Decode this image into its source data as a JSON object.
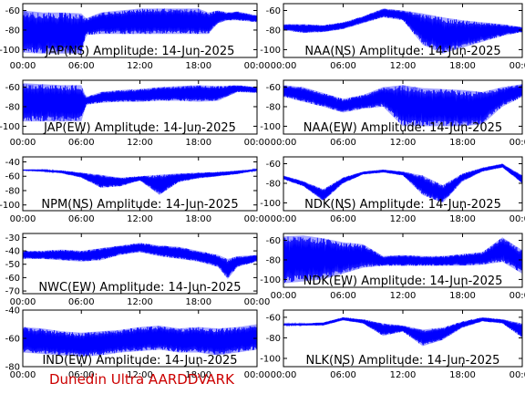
{
  "footer": {
    "text": "Dunedin Ultra AARDDVARK",
    "color": "#cc0000"
  },
  "trace_color": "#0000ff",
  "chart_data": [
    {
      "type": "line",
      "title": "JAP(NS) Amplitude: 14-Jun-2025",
      "x_ticks": [
        "00:00",
        "06:00",
        "12:00",
        "18:00",
        "00:00"
      ],
      "y_ticks": [
        -60,
        -80,
        -100
      ],
      "ylim": [
        -108,
        -53
      ],
      "xlim": [
        0,
        24
      ],
      "x_hours": [
        0,
        2,
        4,
        6,
        6.5,
        8,
        10,
        12,
        14,
        16,
        18,
        19,
        20,
        21,
        22,
        24
      ],
      "upper": [
        -60,
        -62,
        -62,
        -63,
        -68,
        -62,
        -60,
        -58,
        -58,
        -58,
        -58,
        -62,
        -60,
        -62,
        -61,
        -65
      ],
      "lower": [
        -103,
        -104,
        -104,
        -104,
        -85,
        -84,
        -84,
        -84,
        -84,
        -84,
        -84,
        -84,
        -73,
        -70,
        -70,
        -72
      ]
    },
    {
      "type": "line",
      "title": "NAA(NS) Amplitude: 14-Jun-2025",
      "x_ticks": [
        "00:00",
        "06:00",
        "12:00",
        "18:00",
        "00:00"
      ],
      "y_ticks": [
        -60,
        -80,
        -100
      ],
      "ylim": [
        -108,
        -53
      ],
      "xlim": [
        0,
        24
      ],
      "x_hours": [
        0,
        2,
        4,
        6,
        8,
        10,
        12,
        14,
        16,
        18,
        20,
        22,
        24
      ],
      "upper": [
        -74,
        -74,
        -75,
        -72,
        -66,
        -58,
        -60,
        -63,
        -67,
        -70,
        -72,
        -74,
        -77
      ],
      "lower": [
        -80,
        -83,
        -82,
        -79,
        -73,
        -67,
        -70,
        -95,
        -104,
        -98,
        -92,
        -86,
        -82
      ]
    },
    {
      "type": "line",
      "title": "JAP(EW) Amplitude: 14-Jun-2025",
      "x_ticks": [
        "00:00",
        "06:00",
        "12:00",
        "18:00",
        "00:00"
      ],
      "y_ticks": [
        -60,
        -80,
        -100
      ],
      "ylim": [
        -108,
        -53
      ],
      "xlim": [
        0,
        24
      ],
      "x_hours": [
        0,
        2,
        4,
        6,
        6.5,
        8,
        10,
        12,
        14,
        16,
        18,
        20,
        22,
        24
      ],
      "upper": [
        -56,
        -57,
        -58,
        -58,
        -70,
        -65,
        -63,
        -62,
        -60,
        -59,
        -58,
        -59,
        -58,
        -60
      ],
      "lower": [
        -95,
        -95,
        -95,
        -95,
        -78,
        -76,
        -75,
        -75,
        -74,
        -74,
        -75,
        -74,
        -65,
        -66
      ]
    },
    {
      "type": "line",
      "title": "NAA(EW) Amplitude: 14-Jun-2025",
      "x_ticks": [
        "00:00",
        "06:00",
        "12:00",
        "18:00",
        "00:00"
      ],
      "y_ticks": [
        -60,
        -80,
        -100
      ],
      "ylim": [
        -108,
        -53
      ],
      "xlim": [
        0,
        24
      ],
      "x_hours": [
        0,
        2,
        4,
        6,
        8,
        10,
        12,
        14,
        16,
        18,
        20,
        22,
        24
      ],
      "upper": [
        -58,
        -60,
        -66,
        -72,
        -68,
        -60,
        -58,
        -61,
        -62,
        -63,
        -65,
        -60,
        -57
      ],
      "lower": [
        -70,
        -75,
        -80,
        -86,
        -82,
        -80,
        -100,
        -100,
        -100,
        -100,
        -98,
        -80,
        -70
      ]
    },
    {
      "type": "line",
      "title": "NPM(NS) Amplitude: 14-Jun-2025",
      "x_ticks": [
        "00:00",
        "06:00",
        "12:00",
        "18:00",
        "00:00"
      ],
      "y_ticks": [
        -40,
        -60,
        -80,
        -100
      ],
      "ylim": [
        -108,
        -33
      ],
      "xlim": [
        0,
        24
      ],
      "x_hours": [
        0,
        2,
        4,
        6,
        8,
        10,
        12,
        14,
        16,
        18,
        20,
        22,
        24
      ],
      "upper": [
        -51,
        -51,
        -52,
        -55,
        -58,
        -62,
        -60,
        -58,
        -56,
        -55,
        -54,
        -52,
        -50
      ],
      "lower": [
        -52,
        -53,
        -56,
        -62,
        -76,
        -74,
        -66,
        -86,
        -68,
        -63,
        -60,
        -57,
        -52
      ]
    },
    {
      "type": "line",
      "title": "NDK(NS) Amplitude: 14-Jun-2025",
      "x_ticks": [
        "00:00",
        "06:00",
        "12:00",
        "18:00",
        "00:00"
      ],
      "y_ticks": [
        -60,
        -80,
        -100
      ],
      "ylim": [
        -108,
        -53
      ],
      "xlim": [
        0,
        24
      ],
      "x_hours": [
        0,
        2,
        4,
        6,
        8,
        10,
        12,
        14,
        16,
        18,
        20,
        22,
        24
      ],
      "upper": [
        -72,
        -78,
        -86,
        -74,
        -68,
        -66,
        -68,
        -72,
        -82,
        -70,
        -64,
        -60,
        -72
      ],
      "lower": [
        -76,
        -83,
        -98,
        -80,
        -71,
        -69,
        -72,
        -92,
        -100,
        -78,
        -68,
        -64,
        -80
      ]
    },
    {
      "type": "line",
      "title": "NWC(EW) Amplitude: 14-Jun-2025",
      "x_ticks": [
        "00:00",
        "06:00",
        "12:00",
        "18:00",
        "00:00"
      ],
      "y_ticks": [
        -30,
        -40,
        -50,
        -60,
        -70
      ],
      "ylim": [
        -72,
        -27
      ],
      "xlim": [
        0,
        24
      ],
      "x_hours": [
        0,
        2,
        4,
        6,
        8,
        10,
        12,
        14,
        16,
        18,
        20,
        21,
        22,
        24
      ],
      "upper": [
        -40,
        -40,
        -39,
        -40,
        -38,
        -36,
        -34,
        -36,
        -37,
        -40,
        -43,
        -46,
        -44,
        -43
      ],
      "lower": [
        -46,
        -46,
        -47,
        -48,
        -47,
        -43,
        -41,
        -44,
        -46,
        -48,
        -52,
        -61,
        -52,
        -48
      ]
    },
    {
      "type": "line",
      "title": "NDK(EW) Amplitude: 14-Jun-2025",
      "x_ticks": [
        "00:00",
        "06:00",
        "12:00",
        "18:00",
        "00:00"
      ],
      "y_ticks": [
        -60,
        -80,
        -100
      ],
      "ylim": [
        -108,
        -53
      ],
      "xlim": [
        0,
        24
      ],
      "x_hours": [
        0,
        2,
        4,
        6,
        8,
        10,
        12,
        14,
        16,
        18,
        20,
        22,
        24
      ],
      "upper": [
        -56,
        -55,
        -58,
        -62,
        -64,
        -76,
        -75,
        -76,
        -76,
        -74,
        -72,
        -57,
        -70
      ],
      "lower": [
        -104,
        -102,
        -100,
        -94,
        -88,
        -86,
        -86,
        -86,
        -86,
        -86,
        -85,
        -82,
        -94
      ]
    },
    {
      "type": "line",
      "title": "IND(EW) Amplitude: 14-Jun-2025",
      "x_ticks": [
        "00:00",
        "06:00",
        "12:00",
        "18:00",
        "00:00"
      ],
      "y_ticks": [
        -40,
        -60,
        -80
      ],
      "ylim": [
        -80,
        -40
      ],
      "xlim": [
        0,
        24
      ],
      "x_hours": [
        0,
        2,
        4,
        6,
        8,
        10,
        12,
        14,
        16,
        18,
        20,
        22,
        24
      ],
      "upper": [
        -52,
        -53,
        -55,
        -56,
        -55,
        -54,
        -52,
        -51,
        -53,
        -52,
        -53,
        -52,
        -50
      ],
      "lower": [
        -70,
        -71,
        -72,
        -73,
        -72,
        -70,
        -69,
        -68,
        -70,
        -70,
        -72,
        -70,
        -68
      ]
    },
    {
      "type": "line",
      "title": "NLK(NS) Amplitude: 14-Jun-2025",
      "x_ticks": [
        "00:00",
        "06:00",
        "12:00",
        "18:00",
        "00:00"
      ],
      "y_ticks": [
        -60,
        -80,
        -100
      ],
      "ylim": [
        -108,
        -53
      ],
      "xlim": [
        0,
        24
      ],
      "x_hours": [
        0,
        2,
        4,
        6,
        8,
        10,
        12,
        14,
        16,
        18,
        20,
        22,
        24
      ],
      "upper": [
        -66,
        -66,
        -65,
        -60,
        -62,
        -66,
        -68,
        -72,
        -70,
        -64,
        -60,
        -62,
        -66
      ],
      "lower": [
        -68,
        -68,
        -68,
        -63,
        -66,
        -78,
        -74,
        -88,
        -82,
        -70,
        -64,
        -66,
        -80
      ]
    }
  ]
}
